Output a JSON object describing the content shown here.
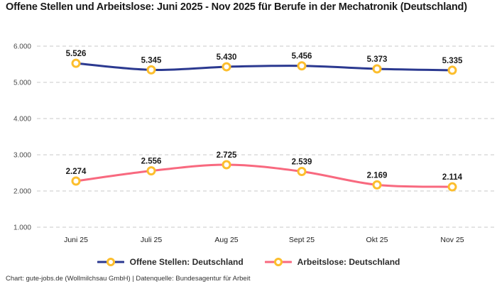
{
  "title": "Offene Stellen und Arbeitslose: Juni 2025 - Nov 2025 für Berufe in der Mechatronik (Deutschland)",
  "footer": "Chart: gute-jobs.de (Wollmilchsau GmbH) | Datenquelle: Bundesagentur für Arbeit",
  "chart_data": {
    "type": "line",
    "title": "Offene Stellen und Arbeitslose: Juni 2025 - Nov 2025 für Berufe in der Mechatronik (Deutschland)",
    "categories": [
      "Juni 25",
      "Juli 25",
      "Aug 25",
      "Sept 25",
      "Okt 25",
      "Nov 25"
    ],
    "series": [
      {
        "name": "Offene Stellen: Deutschland",
        "values": [
          5526,
          5345,
          5430,
          5456,
          5373,
          5335
        ],
        "value_labels": [
          "5.526",
          "5.345",
          "5.430",
          "5.456",
          "5.373",
          "5.335"
        ],
        "color": "#2b3990"
      },
      {
        "name": "Arbeitslose: Deutschland",
        "values": [
          2274,
          2556,
          2725,
          2539,
          2169,
          2114
        ],
        "value_labels": [
          "2.274",
          "2.556",
          "2.725",
          "2.539",
          "2.169",
          "2.114"
        ],
        "color": "#f8697f"
      }
    ],
    "ylim": [
      1000,
      6000
    ],
    "ytick_step": 1000,
    "ytick_labels": [
      "1.000",
      "2.000",
      "3.000",
      "4.000",
      "5.000",
      "6.000"
    ],
    "grid": "horizontal-dashed",
    "legend_position": "bottom",
    "marker": {
      "fill": "#ffffff",
      "stroke": "#fcbe2d"
    },
    "grid_color": "#c9c9c9",
    "axis_label_color": "#4a4a4a",
    "xaxis_label_color": "#222222",
    "data_label_color": "#1a1a1a"
  }
}
